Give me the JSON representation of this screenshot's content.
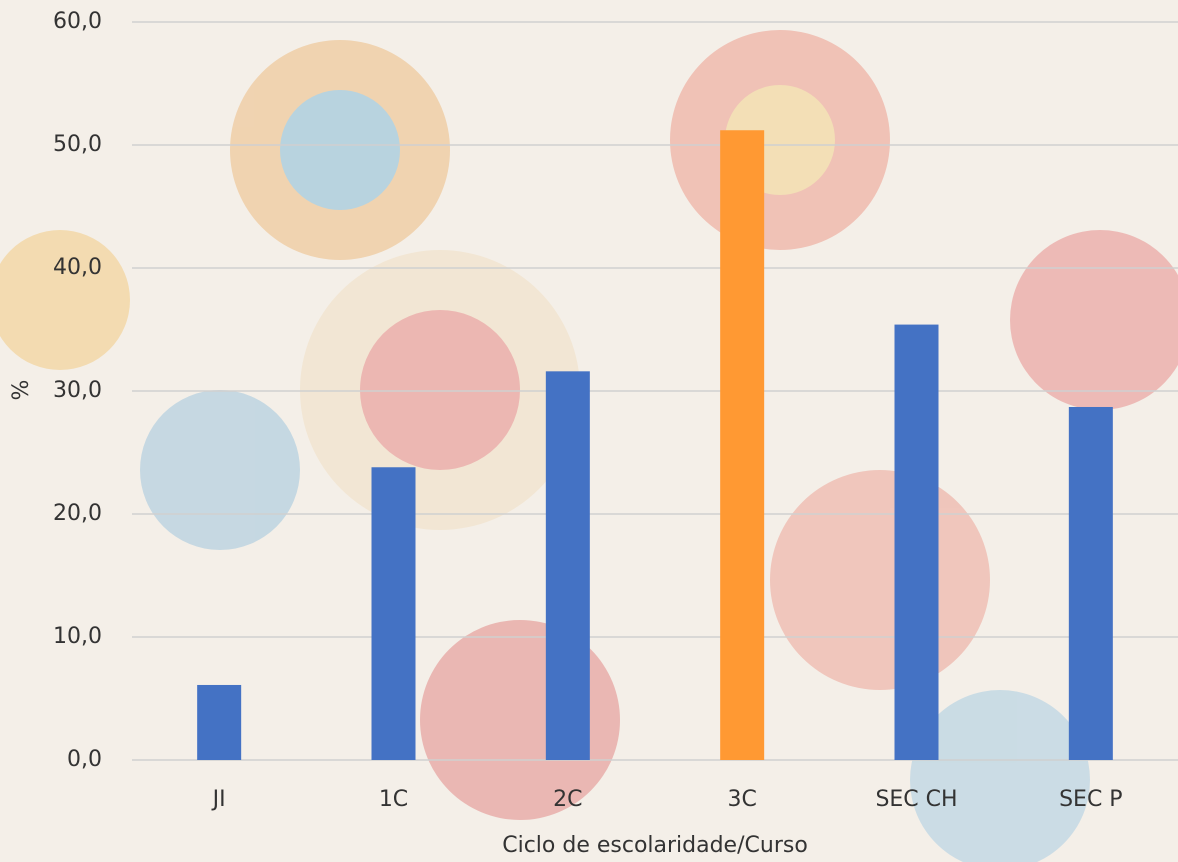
{
  "chart_data": {
    "type": "bar",
    "x_label": "Ciclo de escolaridade/Curso",
    "y_label": "%",
    "categories": [
      "JI",
      "1C",
      "2C",
      "3C",
      "SEC CH",
      "SEC P"
    ],
    "values": [
      6.1,
      23.8,
      31.6,
      51.2,
      35.4,
      28.7
    ],
    "colors": [
      "#4472c4",
      "#4472c4",
      "#4472c4",
      "#ff9933",
      "#4472c4",
      "#4472c4"
    ],
    "ylim": [
      0,
      60
    ],
    "yticks": [
      {
        "value": 0,
        "label": "0,0"
      },
      {
        "value": 10,
        "label": "10,0"
      },
      {
        "value": 20,
        "label": "20,0"
      },
      {
        "value": 30,
        "label": "30,0"
      },
      {
        "value": 40,
        "label": "40,0"
      },
      {
        "value": 50,
        "label": "50,0"
      },
      {
        "value": 60,
        "label": "60,0"
      }
    ],
    "grid": true
  }
}
